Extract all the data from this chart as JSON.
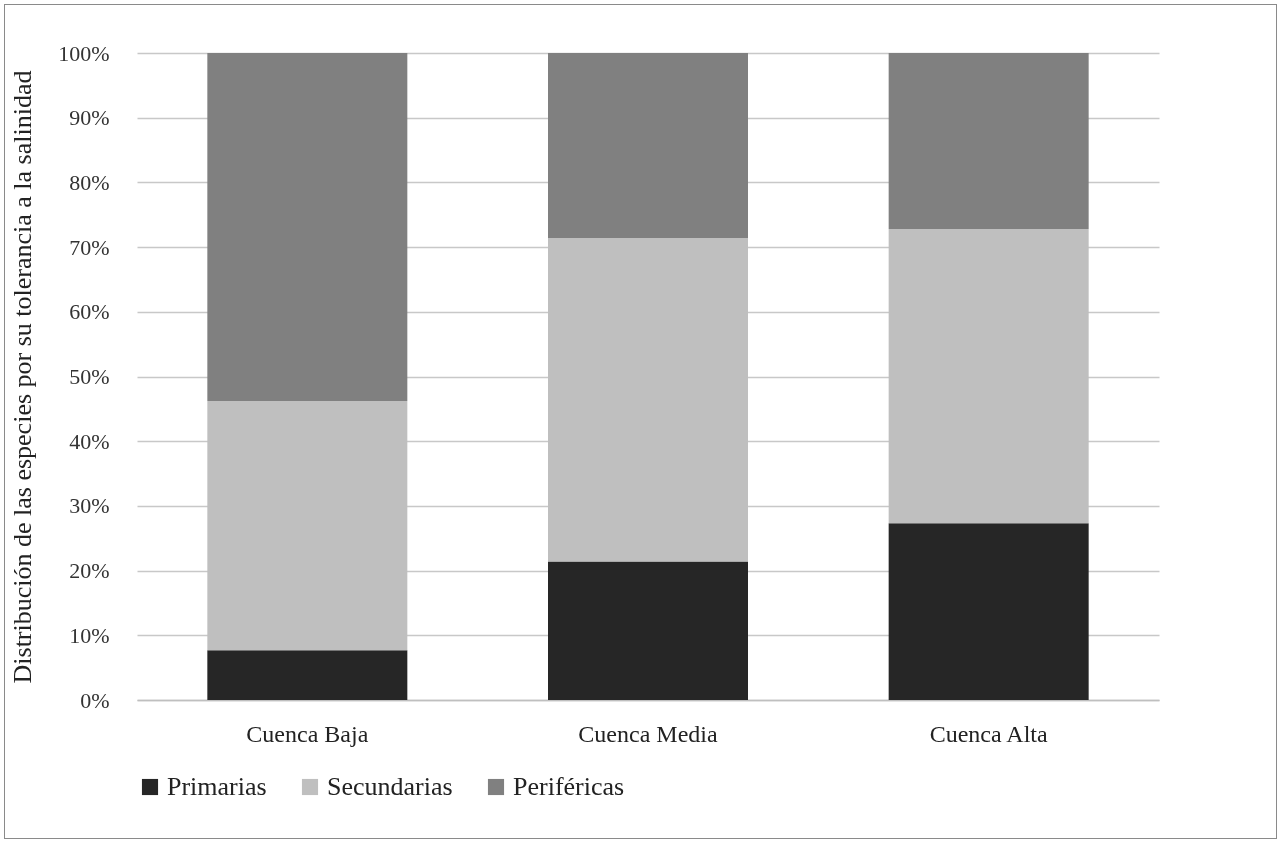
{
  "chart_data": {
    "type": "bar",
    "stacked": true,
    "ylabel": "Distribución de las especies por su tolerancia a la salinidad",
    "categories": [
      "Cuenca Baja",
      "Cuenca Media",
      "Cuenca Alta"
    ],
    "series": [
      {
        "name": "Primarias",
        "color": "#262626",
        "values": [
          7.7,
          21.4,
          27.3
        ]
      },
      {
        "name": "Secundarias",
        "color": "#bfbfbf",
        "values": [
          38.5,
          50.0,
          45.5
        ]
      },
      {
        "name": "Periféricas",
        "color": "#808080",
        "values": [
          53.8,
          28.6,
          27.2
        ]
      }
    ],
    "ylim": [
      0,
      100
    ],
    "yticks": [
      {
        "value": 0,
        "label": "0%"
      },
      {
        "value": 10,
        "label": "10%"
      },
      {
        "value": 20,
        "label": "20%"
      },
      {
        "value": 30,
        "label": "30%"
      },
      {
        "value": 40,
        "label": "40%"
      },
      {
        "value": 50,
        "label": "50%"
      },
      {
        "value": 60,
        "label": "60%"
      },
      {
        "value": 70,
        "label": "70%"
      },
      {
        "value": 80,
        "label": "80%"
      },
      {
        "value": 90,
        "label": "90%"
      },
      {
        "value": 100,
        "label": "100%"
      }
    ],
    "grid": "y",
    "legend": "bottom"
  }
}
